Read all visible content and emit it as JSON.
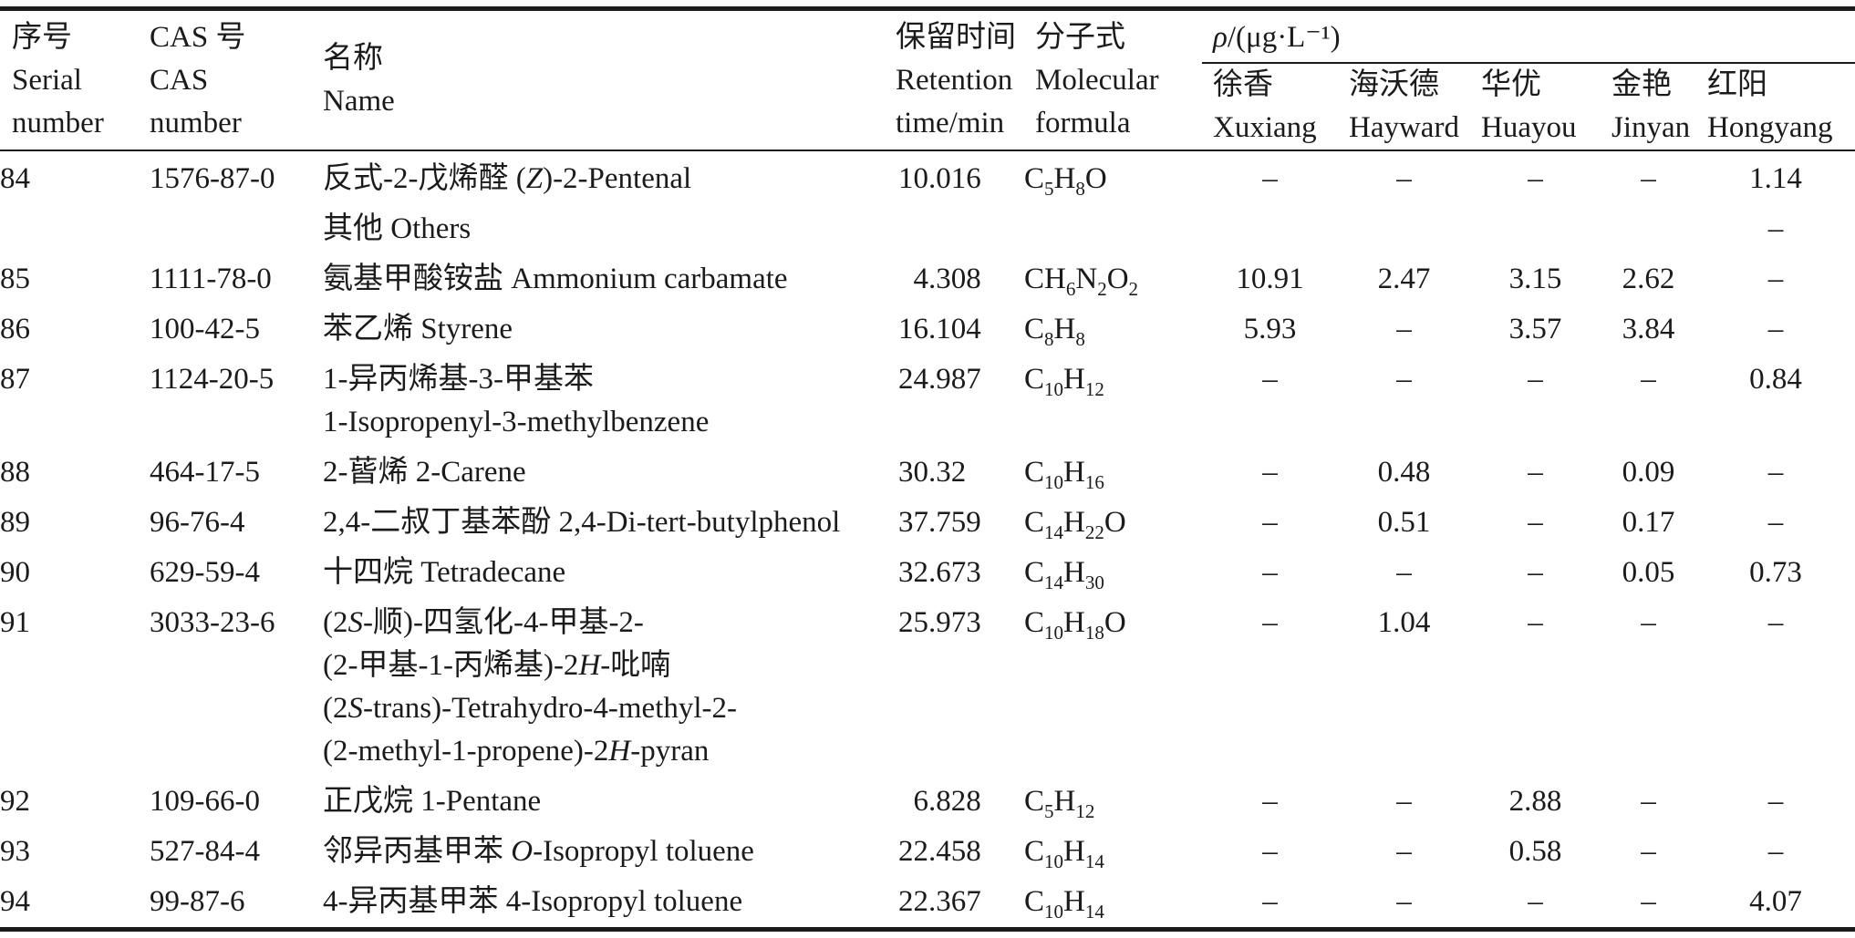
{
  "table": {
    "columns": {
      "serial": {
        "zh": "序号",
        "en": [
          "Serial",
          "number"
        ]
      },
      "cas": {
        "zh": "CAS 号",
        "en": [
          "CAS",
          "number"
        ]
      },
      "name": {
        "zh": "名称",
        "en": [
          "Name"
        ]
      },
      "retention": {
        "zh": "保留时间",
        "en": [
          "Retention",
          "time/min"
        ]
      },
      "formula": {
        "zh": "分子式",
        "en": [
          "Molecular",
          "formula"
        ]
      },
      "group": {
        "rho": "ρ",
        "rest": "/(μg·L⁻¹)"
      },
      "varieties": [
        {
          "zh": "徐香",
          "en": "Xuxiang"
        },
        {
          "zh": "海沃德",
          "en": "Hayward"
        },
        {
          "zh": "华优",
          "en": "Huayou"
        },
        {
          "zh": "金艳",
          "en": "Jinyan"
        },
        {
          "zh": "红阳",
          "en": "Hongyang"
        }
      ]
    },
    "rows": [
      {
        "serial": "84",
        "cas": "1576-87-0",
        "name_lines": [
          "反式-2-戊烯醛 (*Z*)-2-Pentenal"
        ],
        "retention": "10.016",
        "formula": "C5H8O",
        "values": [
          "–",
          "–",
          "–",
          "–",
          "1.14"
        ]
      },
      {
        "section": true,
        "name_lines": [
          "其他 Others"
        ],
        "values": [
          "",
          "",
          "",
          "",
          "–"
        ]
      },
      {
        "serial": "85",
        "cas": "1111-78-0",
        "name_lines": [
          "氨基甲酸铵盐 Ammonium carbamate"
        ],
        "retention": "4.308",
        "formula": "CH6N2O2",
        "values": [
          "10.91",
          "2.47",
          "3.15",
          "2.62",
          "–"
        ]
      },
      {
        "serial": "86",
        "cas": "100-42-5",
        "name_lines": [
          "苯乙烯 Styrene"
        ],
        "retention": "16.104",
        "formula": "C8H8",
        "values": [
          "5.93",
          "–",
          "3.57",
          "3.84",
          "–"
        ]
      },
      {
        "serial": "87",
        "cas": "1124-20-5",
        "name_lines": [
          "1-异丙烯基-3-甲基苯",
          "1-Isopropenyl-3-methylbenzene"
        ],
        "retention": "24.987",
        "formula": "C10H12",
        "values": [
          "–",
          "–",
          "–",
          "–",
          "0.84"
        ]
      },
      {
        "serial": "88",
        "cas": "464-17-5",
        "name_lines": [
          "2-蒈烯 2-Carene"
        ],
        "retention": "30.32",
        "formula": "C10H16",
        "values": [
          "–",
          "0.48",
          "–",
          "0.09",
          "–"
        ]
      },
      {
        "serial": "89",
        "cas": "96-76-4",
        "name_lines": [
          "2,4-二叔丁基苯酚 2,4-Di-tert-butylphenol"
        ],
        "retention": "37.759",
        "formula": "C14H22O",
        "values": [
          "–",
          "0.51",
          "–",
          "0.17",
          "–"
        ]
      },
      {
        "serial": "90",
        "cas": "629-59-4",
        "name_lines": [
          "十四烷 Tetradecane"
        ],
        "retention": "32.673",
        "formula": "C14H30",
        "values": [
          "–",
          "–",
          "–",
          "0.05",
          "0.73"
        ]
      },
      {
        "serial": "91",
        "cas": "3033-23-6",
        "name_lines": [
          "(2*S*-顺)-四氢化-4-甲基-2-",
          "(2-甲基-1-丙烯基)-2*H*-吡喃",
          "(2*S*-trans)-Tetrahydro-4-methyl-2-",
          "(2-methyl-1-propene)-2*H*-pyran"
        ],
        "retention": "25.973",
        "formula": "C10H18O",
        "values": [
          "–",
          "1.04",
          "–",
          "–",
          "–"
        ]
      },
      {
        "serial": "92",
        "cas": "109-66-0",
        "name_lines": [
          "正戊烷 1-Pentane"
        ],
        "retention": "6.828",
        "formula": "C5H12",
        "values": [
          "–",
          "–",
          "2.88",
          "–",
          "–"
        ]
      },
      {
        "serial": "93",
        "cas": "527-84-4",
        "name_lines": [
          "邻异丙基甲苯 *O*-Isopropyl toluene"
        ],
        "retention": "22.458",
        "formula": "C10H14",
        "values": [
          "–",
          "–",
          "0.58",
          "–",
          "–"
        ]
      },
      {
        "serial": "94",
        "cas": "99-87-6",
        "name_lines": [
          "4-异丙基甲苯 4-Isopropyl toluene"
        ],
        "retention": "22.367",
        "formula": "C10H14",
        "values": [
          "–",
          "–",
          "–",
          "–",
          "4.07"
        ]
      }
    ]
  }
}
